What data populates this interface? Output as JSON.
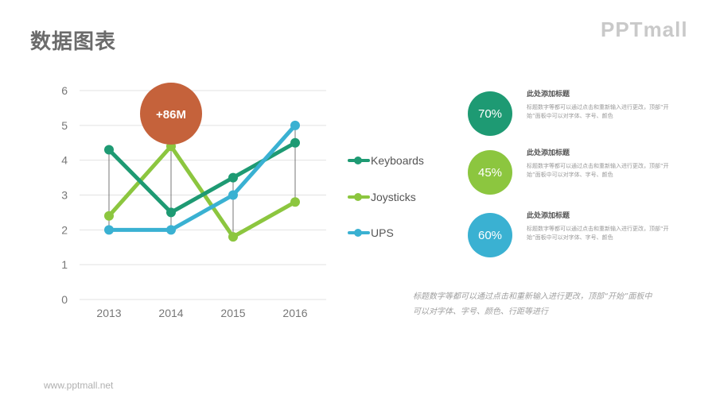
{
  "page": {
    "title": "数据图表",
    "logo": "PPTmall",
    "footer": "www.pptmall.net"
  },
  "chart_data": {
    "type": "line",
    "categories": [
      "2013",
      "2014",
      "2015",
      "2016"
    ],
    "series": [
      {
        "name": "Keyboards",
        "color": "#1e9a73",
        "values": [
          4.3,
          2.5,
          3.5,
          4.5
        ]
      },
      {
        "name": "Joysticks",
        "color": "#8cc63f",
        "values": [
          2.4,
          4.4,
          1.8,
          2.8
        ]
      },
      {
        "name": "UPS",
        "color": "#3ab1d2",
        "values": [
          2.0,
          2.0,
          3.0,
          5.0
        ]
      }
    ],
    "ylim": [
      0,
      6
    ],
    "yticks": [
      0,
      1,
      2,
      3,
      4,
      5,
      6
    ],
    "grid": true,
    "legend": "right",
    "annotation": {
      "text": "+86M",
      "category": "2014",
      "color": "#c5623b"
    }
  },
  "stats": [
    {
      "value": "70%",
      "color": "#1e9a73",
      "title": "此处添加标题",
      "desc": "标题数字等都可以通过点击和重新输入进行更改，顶部“开始”面板中可以对字体、字号、颜色"
    },
    {
      "value": "45%",
      "color": "#8cc63f",
      "title": "此处添加标题",
      "desc": "标题数字等都可以通过点击和重新输入进行更改，顶部“开始”面板中可以对字体、字号、颜色"
    },
    {
      "value": "60%",
      "color": "#3ab1d2",
      "title": "此处添加标题",
      "desc": "标题数字等都可以通过点击和重新输入进行更改，顶部“开始”面板中可以对字体、字号、颜色"
    }
  ],
  "note": "标题数字等都可以通过点击和重新输入进行更改，顶部“开始”面板中可以对字体、字号、颜色、行距等进行"
}
